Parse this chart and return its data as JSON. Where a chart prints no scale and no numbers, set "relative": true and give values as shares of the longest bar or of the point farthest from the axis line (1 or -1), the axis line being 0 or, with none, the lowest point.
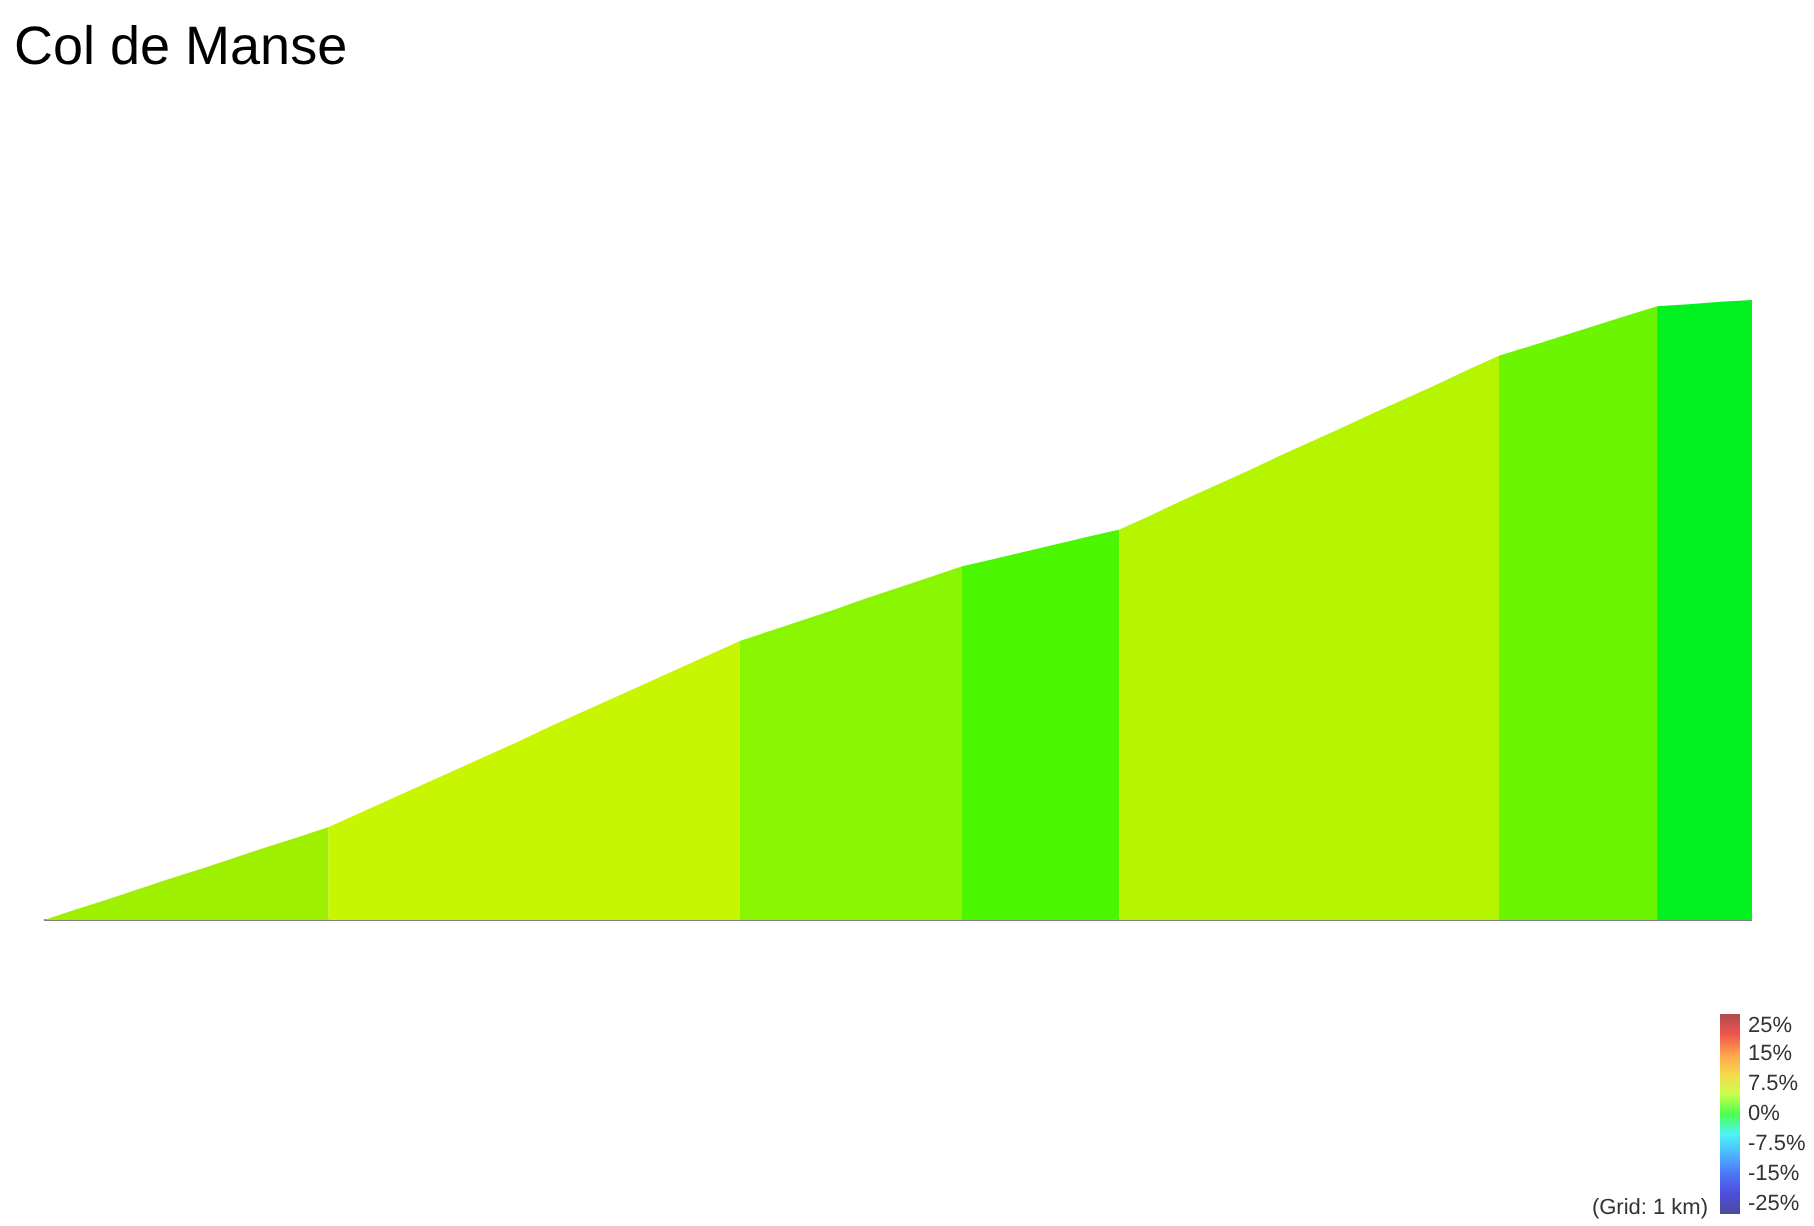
{
  "chart_data": {
    "type": "area",
    "title": "Col de Manse",
    "relative": true,
    "categories": [
      null,
      null,
      null,
      null,
      null,
      null,
      null,
      null,
      null,
      null,
      null,
      null,
      null,
      null,
      null,
      null,
      null,
      null,
      null,
      null,
      null,
      null,
      null,
      null,
      null,
      null,
      null,
      null,
      null,
      null,
      null,
      null,
      null,
      null,
      null,
      null,
      null,
      null,
      null,
      null,
      null,
      null,
      null,
      null,
      null,
      null,
      null,
      null,
      null,
      null,
      null,
      null,
      null,
      null,
      null
    ],
    "series": [
      {
        "color": "#9ef000",
        "values": [
          0,
          0.017,
          0.033,
          0.05,
          0.067,
          0.083,
          0.1,
          0.117,
          0.133,
          0.15,
          null,
          null,
          null,
          null,
          null,
          null,
          null,
          null,
          null,
          null,
          null,
          null,
          null,
          null,
          null,
          null,
          null,
          null,
          null,
          null,
          null,
          null,
          null,
          null,
          null,
          null,
          null,
          null,
          null,
          null,
          null,
          null,
          null,
          null,
          null,
          null,
          null,
          null,
          null,
          null,
          null,
          null,
          null,
          null,
          null
        ]
      },
      {
        "color": "#c8f500",
        "values": [
          null,
          null,
          null,
          null,
          null,
          null,
          null,
          null,
          null,
          0.15,
          0.173,
          0.196,
          0.219,
          0.242,
          0.265,
          0.288,
          0.312,
          0.335,
          0.358,
          0.381,
          0.404,
          0.427,
          0.45,
          null,
          null,
          null,
          null,
          null,
          null,
          null,
          null,
          null,
          null,
          null,
          null,
          null,
          null,
          null,
          null,
          null,
          null,
          null,
          null,
          null,
          null,
          null,
          null,
          null,
          null,
          null,
          null,
          null,
          null,
          null,
          null
        ]
      },
      {
        "color": "#8af500",
        "values": [
          null,
          null,
          null,
          null,
          null,
          null,
          null,
          null,
          null,
          null,
          null,
          null,
          null,
          null,
          null,
          null,
          null,
          null,
          null,
          null,
          null,
          null,
          0.45,
          0.467,
          0.484,
          0.501,
          0.519,
          0.536,
          0.553,
          0.57,
          null,
          null,
          null,
          null,
          null,
          null,
          null,
          null,
          null,
          null,
          null,
          null,
          null,
          null,
          null,
          null,
          null,
          null,
          null,
          null,
          null,
          null,
          null,
          null,
          null
        ]
      },
      {
        "color": "#4cf500",
        "values": [
          null,
          null,
          null,
          null,
          null,
          null,
          null,
          null,
          null,
          null,
          null,
          null,
          null,
          null,
          null,
          null,
          null,
          null,
          null,
          null,
          null,
          null,
          null,
          null,
          null,
          null,
          null,
          null,
          null,
          0.57,
          0.582,
          0.594,
          0.606,
          0.618,
          0.63,
          null,
          null,
          null,
          null,
          null,
          null,
          null,
          null,
          null,
          null,
          null,
          null,
          null,
          null,
          null,
          null,
          null,
          null,
          null,
          null
        ]
      },
      {
        "color": "#b5f500",
        "values": [
          null,
          null,
          null,
          null,
          null,
          null,
          null,
          null,
          null,
          null,
          null,
          null,
          null,
          null,
          null,
          null,
          null,
          null,
          null,
          null,
          null,
          null,
          null,
          null,
          null,
          null,
          null,
          null,
          null,
          null,
          null,
          null,
          null,
          null,
          0.63,
          0.653,
          0.677,
          0.7,
          0.723,
          0.747,
          0.77,
          0.793,
          0.817,
          0.84,
          0.863,
          0.887,
          0.91,
          null,
          null,
          null,
          null,
          null,
          null,
          null,
          null
        ]
      },
      {
        "color": "#6cf500",
        "values": [
          null,
          null,
          null,
          null,
          null,
          null,
          null,
          null,
          null,
          null,
          null,
          null,
          null,
          null,
          null,
          null,
          null,
          null,
          null,
          null,
          null,
          null,
          null,
          null,
          null,
          null,
          null,
          null,
          null,
          null,
          null,
          null,
          null,
          null,
          null,
          null,
          null,
          null,
          null,
          null,
          null,
          null,
          null,
          null,
          null,
          null,
          0.91,
          0.926,
          0.942,
          0.958,
          0.974,
          0.99,
          null,
          null,
          null
        ]
      },
      {
        "color": "#00f020",
        "values": [
          null,
          null,
          null,
          null,
          null,
          null,
          null,
          null,
          null,
          null,
          null,
          null,
          null,
          null,
          null,
          null,
          null,
          null,
          null,
          null,
          null,
          null,
          null,
          null,
          null,
          null,
          null,
          null,
          null,
          null,
          null,
          null,
          null,
          null,
          null,
          null,
          null,
          null,
          null,
          null,
          null,
          null,
          null,
          null,
          null,
          null,
          null,
          null,
          null,
          null,
          null,
          0.99,
          0.993,
          0.997,
          1
        ]
      }
    ],
    "clim": [
      -25,
      25
    ],
    "cticks": [
      {
        "value": 25,
        "label": "25%"
      },
      {
        "value": 15,
        "label": "15%"
      },
      {
        "value": 7.5,
        "label": "7.5%"
      },
      {
        "value": 0,
        "label": "0%"
      },
      {
        "value": -7.5,
        "label": "-7.5%"
      },
      {
        "value": -15,
        "label": "-15%"
      },
      {
        "value": -25,
        "label": "-25%"
      }
    ],
    "annotations": [
      "(Grid: 1 km)"
    ]
  }
}
